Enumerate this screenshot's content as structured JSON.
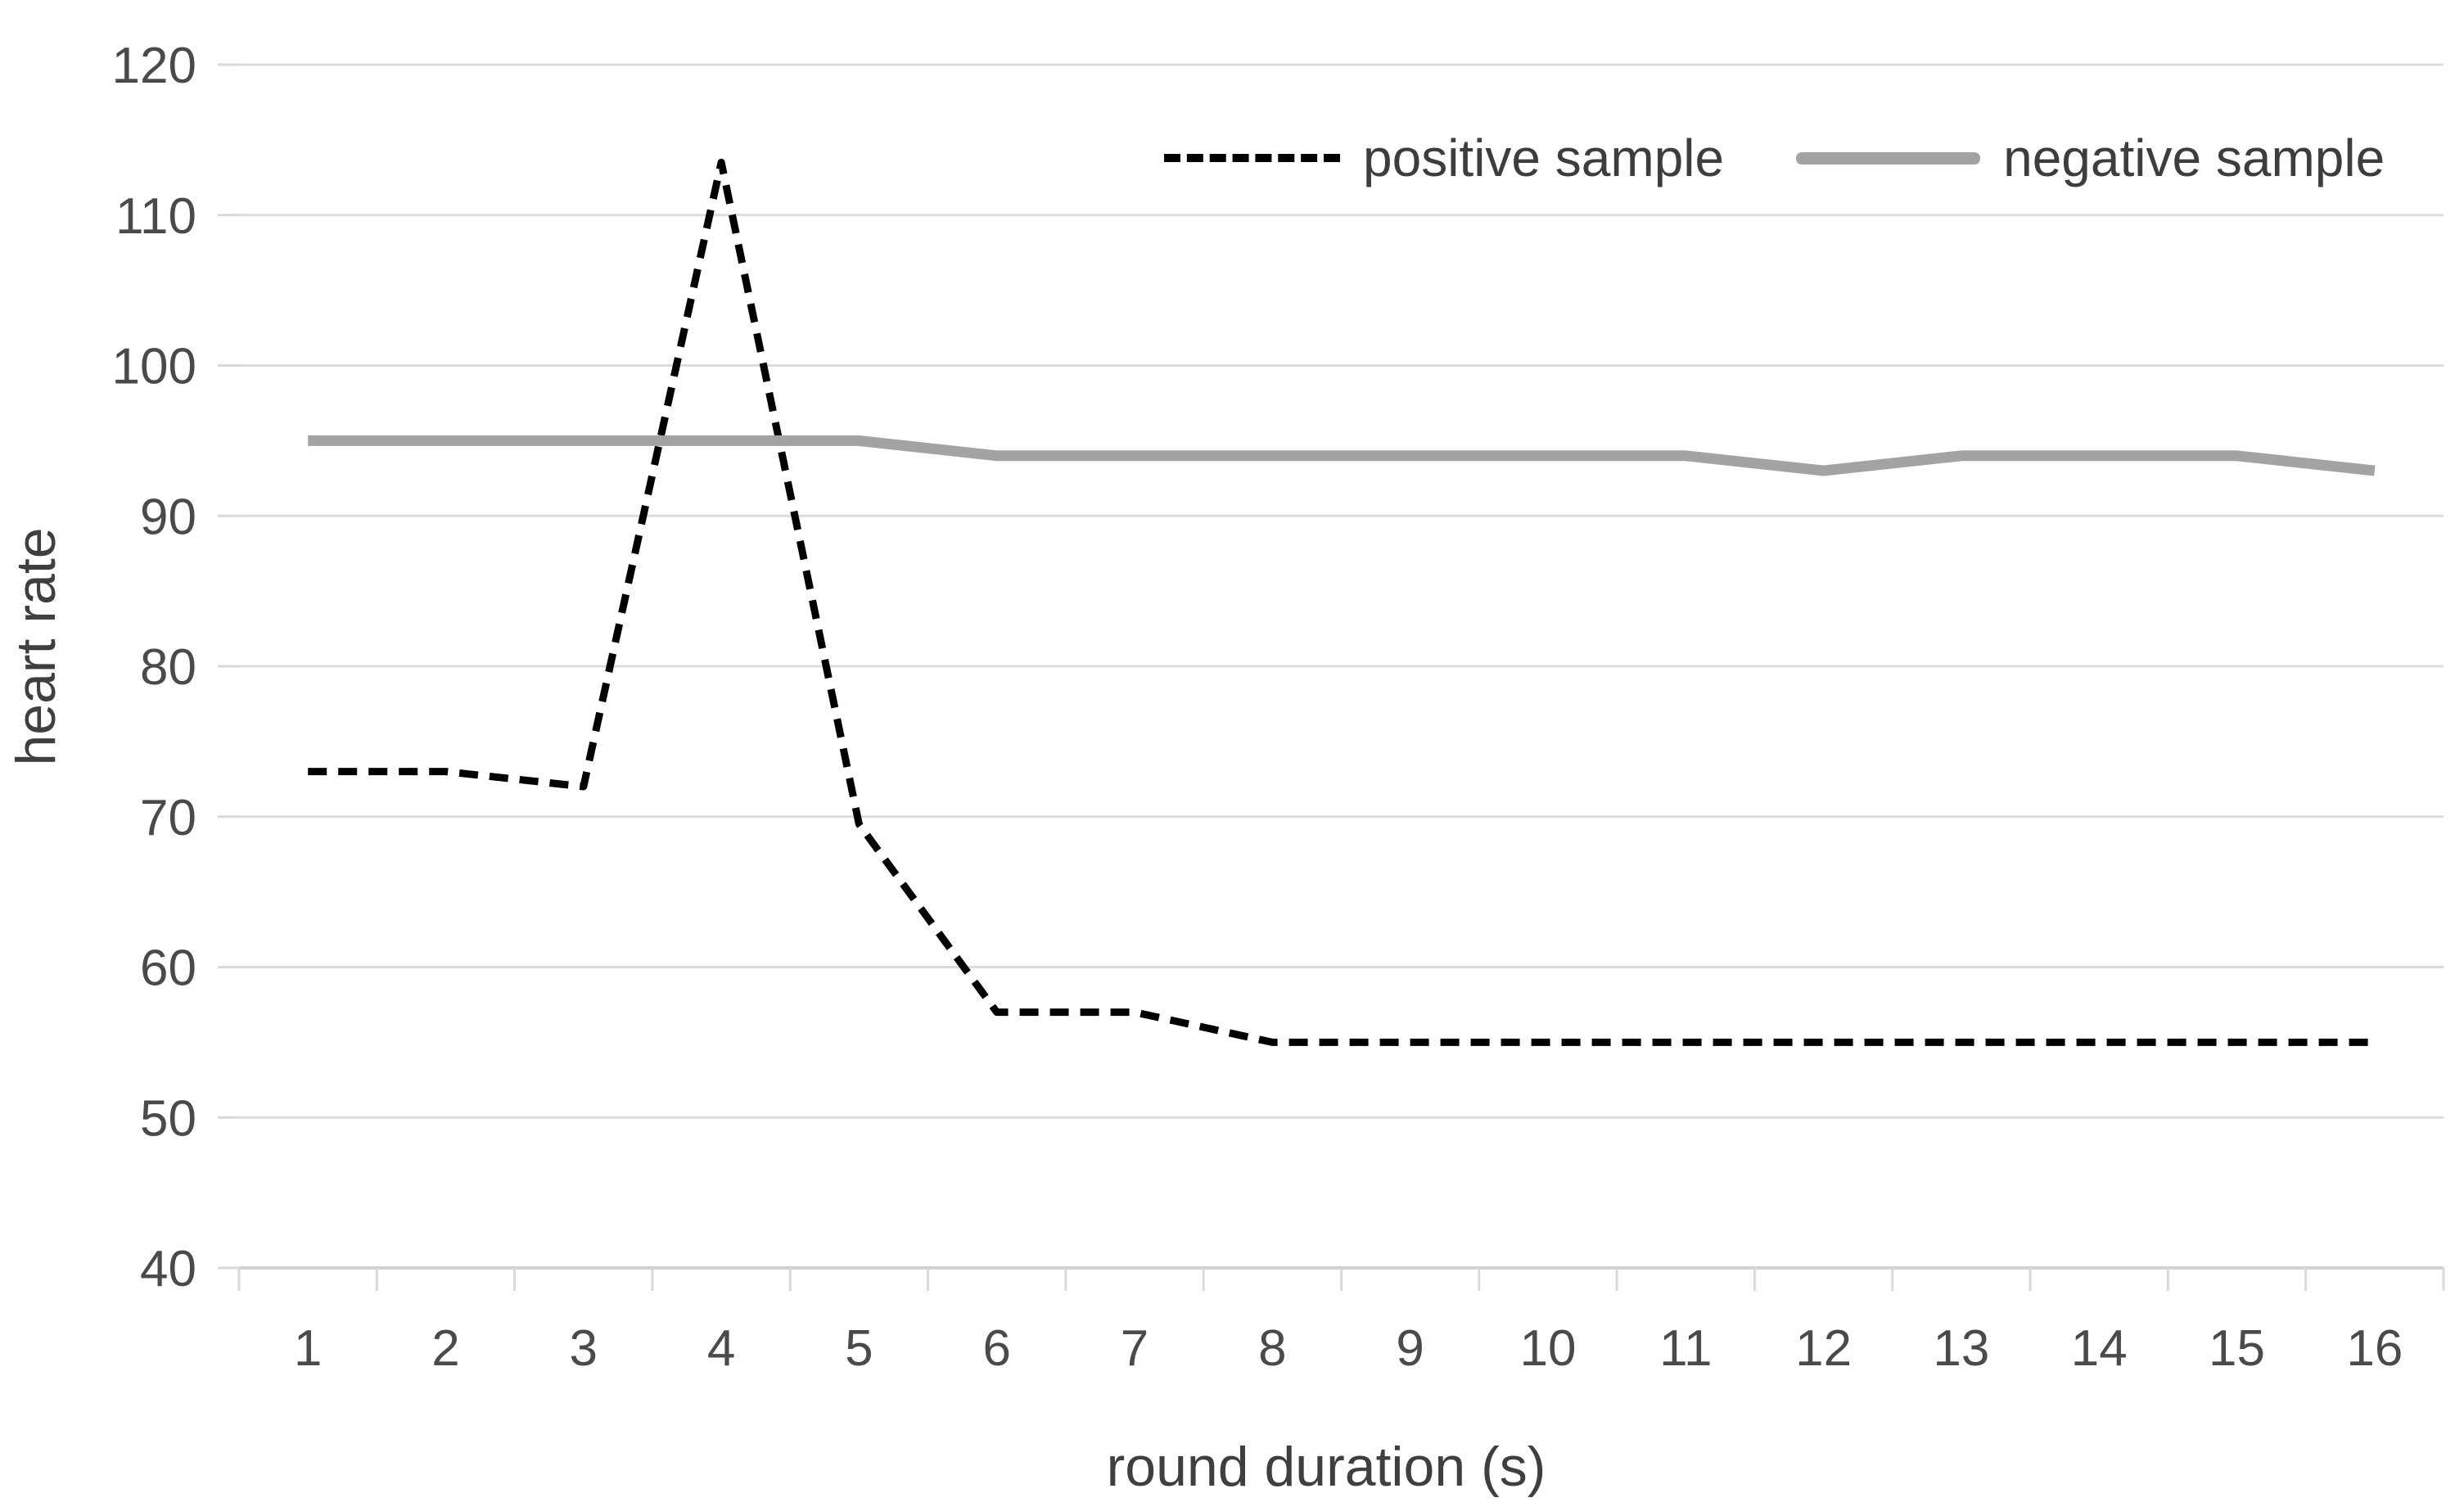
{
  "chart_data": {
    "type": "line",
    "title": "",
    "xlabel": "round duration (s)",
    "ylabel": "heart rate",
    "categories": [
      "1",
      "2",
      "3",
      "4",
      "5",
      "6",
      "7",
      "8",
      "9",
      "10",
      "11",
      "12",
      "13",
      "14",
      "15",
      "16"
    ],
    "series": [
      {
        "name": "positive sample",
        "style": "dashed",
        "color": "#000000",
        "values": [
          73,
          73,
          72,
          113.5,
          69.5,
          57,
          57,
          55,
          55,
          55,
          55,
          55,
          55,
          55,
          55,
          55
        ]
      },
      {
        "name": "negative sample",
        "style": "solid",
        "color": "#a3a3a3",
        "values": [
          95,
          95,
          95,
          95,
          95,
          94,
          94,
          94,
          94,
          94,
          94,
          93,
          94,
          94,
          94,
          93
        ]
      }
    ],
    "ylim": [
      40,
      120
    ],
    "ytick_step": 10,
    "y_tick_labels": [
      "40",
      "50",
      "60",
      "70",
      "80",
      "90",
      "100",
      "110",
      "120"
    ],
    "grid": "horizontal",
    "legend_position": "top-right"
  },
  "colors": {
    "background": "#ffffff",
    "gridline": "#dcdcdc",
    "axis_line": "#d2d2d2",
    "tick_mark": "#d9d9d9",
    "tick_label": "#4a4a4a",
    "axis_title": "#3f3f3f",
    "legend_text": "#3d3d3d",
    "positive_series": "#000000",
    "negative_series": "#a3a3a3"
  }
}
